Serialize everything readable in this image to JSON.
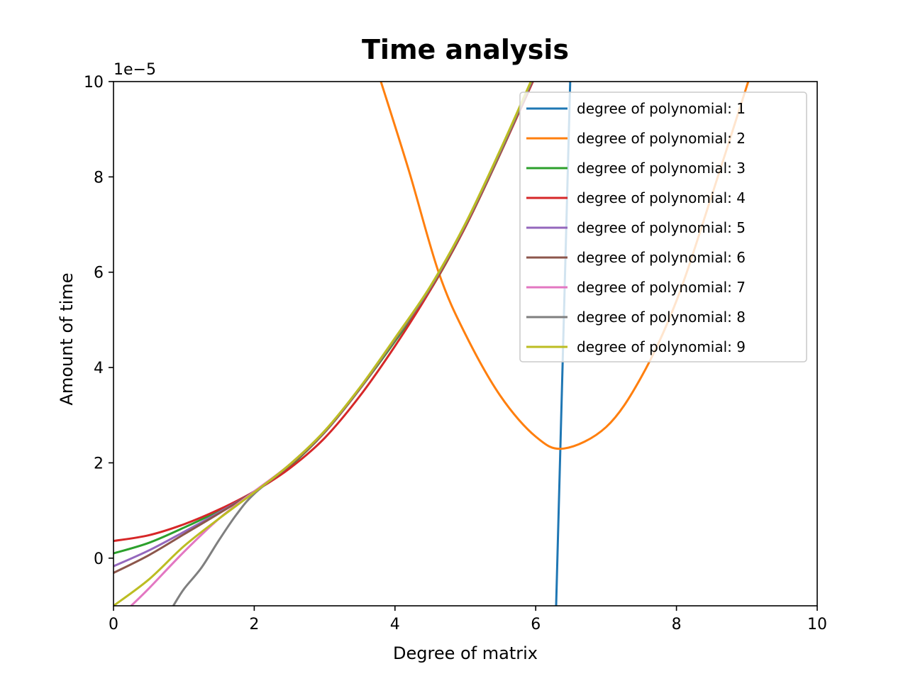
{
  "chart_data": {
    "type": "line",
    "title": "Time analysis",
    "xlabel": "Degree of matrix",
    "ylabel": "Amount of time",
    "y_multiplier_label": "1e−5",
    "xlim": [
      0,
      10
    ],
    "ylim": [
      -1e-05,
      0.0001
    ],
    "x_ticks": [
      0,
      2,
      4,
      6,
      8,
      10
    ],
    "x_tick_labels": [
      "0",
      "2",
      "4",
      "6",
      "8",
      "10"
    ],
    "y_ticks": [
      0,
      2e-05,
      4e-05,
      6e-05,
      8e-05,
      0.0001
    ],
    "y_tick_labels": [
      "0",
      "2",
      "4",
      "6",
      "8",
      "10"
    ],
    "grid": false,
    "legend_position": "upper right",
    "series": [
      {
        "name": "degree of polynomial: 1",
        "color": "#1f77b4",
        "x": [
          6.29,
          6.39,
          6.49
        ],
        "y": [
          -1e-05,
          4.5e-05,
          0.0001
        ]
      },
      {
        "name": "degree of polynomial: 2",
        "color": "#ff7f0e",
        "x": [
          3.8,
          4.2,
          4.62,
          5.0,
          5.5,
          6.0,
          6.4,
          7.0,
          7.5,
          8.0,
          8.5,
          9.02
        ],
        "y": [
          0.0001,
          8.12e-05,
          6e-05,
          4.7e-05,
          3.4e-05,
          2.55e-05,
          2.3e-05,
          2.75e-05,
          3.8e-05,
          5.4e-05,
          7.6e-05,
          0.0001
        ]
      },
      {
        "name": "degree of polynomial: 3",
        "color": "#2ca02c",
        "x": [
          0,
          0.5,
          1.0,
          1.5,
          2.0,
          2.5,
          3.0,
          3.5,
          4.0,
          4.5,
          5.0,
          5.5,
          5.95
        ],
        "y": [
          1e-06,
          3.2e-06,
          6.4e-06,
          9.9e-06,
          1.39e-05,
          1.92e-05,
          2.64e-05,
          3.55e-05,
          4.55e-05,
          5.62e-05,
          6.95e-05,
          8.5e-05,
          0.0001
        ]
      },
      {
        "name": "degree of polynomial: 4",
        "color": "#d62728",
        "x": [
          0,
          0.5,
          1.0,
          1.5,
          2.0,
          2.5,
          3.0,
          3.5,
          4.0,
          4.5,
          5.0,
          5.5,
          5.96
        ],
        "y": [
          3.6e-06,
          4.8e-06,
          7.1e-06,
          1.02e-05,
          1.4e-05,
          1.88e-05,
          2.52e-05,
          3.4e-05,
          4.45e-05,
          5.62e-05,
          6.95e-05,
          8.5e-05,
          0.0001
        ]
      },
      {
        "name": "degree of polynomial: 5",
        "color": "#9467bd",
        "x": [
          0,
          0.5,
          1.0,
          1.5,
          2.0,
          2.5,
          3.0,
          3.5,
          4.0,
          4.5,
          5.0,
          5.5,
          5.95
        ],
        "y": [
          -1.7e-06,
          1.6e-06,
          5.5e-06,
          9.6e-06,
          1.4e-05,
          1.94e-05,
          2.64e-05,
          3.55e-05,
          4.58e-05,
          5.66e-05,
          6.98e-05,
          8.52e-05,
          0.0001
        ]
      },
      {
        "name": "degree of polynomial: 6",
        "color": "#8c564b",
        "x": [
          0,
          0.5,
          1.0,
          1.5,
          2.0,
          2.5,
          3.0,
          3.5,
          4.0,
          4.5,
          5.0,
          5.5,
          5.95
        ],
        "y": [
          -3.1e-06,
          6e-07,
          5e-06,
          9.4e-06,
          1.4e-05,
          1.94e-05,
          2.64e-05,
          3.55e-05,
          4.58e-05,
          5.66e-05,
          6.98e-05,
          8.52e-05,
          0.0001
        ]
      },
      {
        "name": "degree of polynomial: 7",
        "color": "#e377c2",
        "x": [
          0.25,
          0.5,
          1.0,
          1.5,
          2.0,
          2.5,
          3.0,
          3.5,
          4.0,
          4.5,
          5.0,
          5.5,
          5.94
        ],
        "y": [
          -1e-05,
          -6.4e-06,
          1.3e-06,
          8.3e-06,
          1.4e-05,
          1.96e-05,
          2.66e-05,
          3.57e-05,
          4.6e-05,
          5.68e-05,
          7e-05,
          8.55e-05,
          0.0001
        ]
      },
      {
        "name": "degree of polynomial: 8",
        "color": "#7f7f7f",
        "x": [
          0.85,
          1.0,
          1.25,
          1.5,
          1.75,
          2.0,
          2.5,
          3.0,
          3.5,
          4.0,
          4.5,
          5.0,
          5.5,
          5.94
        ],
        "y": [
          -1e-05,
          -6.5e-06,
          -2e-06,
          3.8e-06,
          9.2e-06,
          1.35e-05,
          1.96e-05,
          2.66e-05,
          3.57e-05,
          4.6e-05,
          5.68e-05,
          7e-05,
          8.55e-05,
          0.0001
        ]
      },
      {
        "name": "degree of polynomial: 9",
        "color": "#bcbd22",
        "x": [
          0,
          0.5,
          1.0,
          1.5,
          2.0,
          2.5,
          3.0,
          3.5,
          4.0,
          4.5,
          5.0,
          5.5,
          5.93
        ],
        "y": [
          -1e-05,
          -4.5e-06,
          2.5e-06,
          8.3e-06,
          1.38e-05,
          1.96e-05,
          2.67e-05,
          3.58e-05,
          4.62e-05,
          5.7e-05,
          7.02e-05,
          8.58e-05,
          0.0001
        ]
      }
    ]
  }
}
